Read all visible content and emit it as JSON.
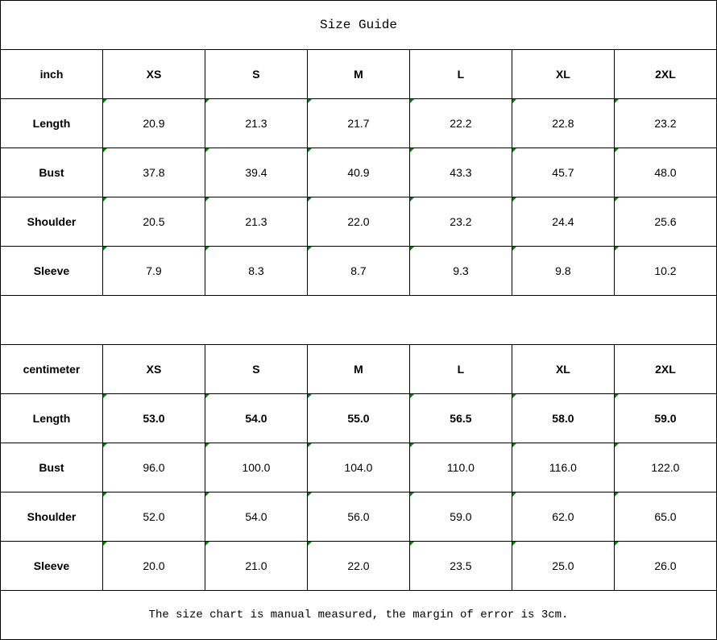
{
  "title": "Size Guide",
  "inch": {
    "unit": "inch",
    "sizes": [
      "XS",
      "S",
      "M",
      "L",
      "XL",
      "2XL"
    ],
    "rows": [
      {
        "label": "Length",
        "values": [
          "20.9",
          "21.3",
          "21.7",
          "22.2",
          "22.8",
          "23.2"
        ]
      },
      {
        "label": "Bust",
        "values": [
          "37.8",
          "39.4",
          "40.9",
          "43.3",
          "45.7",
          "48.0"
        ]
      },
      {
        "label": "Shoulder",
        "values": [
          "20.5",
          "21.3",
          "22.0",
          "23.2",
          "24.4",
          "25.6"
        ]
      },
      {
        "label": "Sleeve",
        "values": [
          "7.9",
          "8.3",
          "8.7",
          "9.3",
          "9.8",
          "10.2"
        ]
      }
    ]
  },
  "cm": {
    "unit": "centimeter",
    "sizes": [
      "XS",
      "S",
      "M",
      "L",
      "XL",
      "2XL"
    ],
    "rows": [
      {
        "label": "Length",
        "values": [
          "53.0",
          "54.0",
          "55.0",
          "56.5",
          "58.0",
          "59.0"
        ]
      },
      {
        "label": "Bust",
        "values": [
          "96.0",
          "100.0",
          "104.0",
          "110.0",
          "116.0",
          "122.0"
        ]
      },
      {
        "label": "Shoulder",
        "values": [
          "52.0",
          "54.0",
          "56.0",
          "59.0",
          "62.0",
          "65.0"
        ]
      },
      {
        "label": "Sleeve",
        "values": [
          "20.0",
          "21.0",
          "22.0",
          "23.5",
          "25.0",
          "26.0"
        ]
      }
    ]
  },
  "note": "The size chart is manual measured, the margin of error is 3cm.",
  "colors": {
    "cell_marker": "#008000"
  }
}
